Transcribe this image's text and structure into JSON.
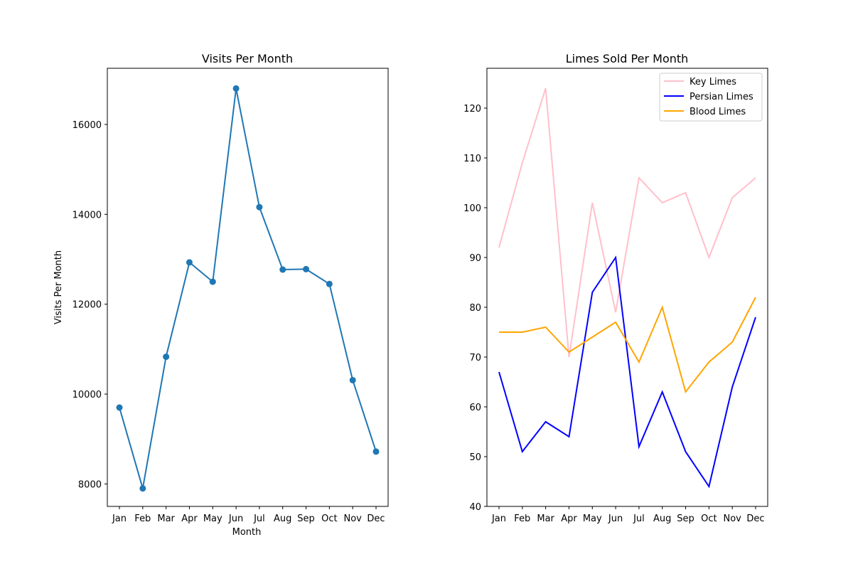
{
  "chart_data": [
    {
      "type": "line",
      "title": "Visits Per Month",
      "xlabel": "Month",
      "ylabel": "Visits Per Month",
      "categories": [
        "Jan",
        "Feb",
        "Mar",
        "Apr",
        "May",
        "Jun",
        "Jul",
        "Aug",
        "Sep",
        "Oct",
        "Nov",
        "Dec"
      ],
      "ylim": [
        7500,
        17250
      ],
      "yticks": [
        8000,
        10000,
        12000,
        14000,
        16000
      ],
      "grid": false,
      "markers": true,
      "series": [
        {
          "color": "#1f77b4",
          "values": [
            9700,
            7900,
            10830,
            12930,
            12500,
            16800,
            14160,
            12770,
            12780,
            12450,
            10310,
            8720
          ]
        }
      ]
    },
    {
      "type": "line",
      "title": "Limes Sold Per Month",
      "xlabel": "",
      "ylabel": "",
      "categories": [
        "Jan",
        "Feb",
        "Mar",
        "Apr",
        "May",
        "Jun",
        "Jul",
        "Aug",
        "Sep",
        "Oct",
        "Nov",
        "Dec"
      ],
      "ylim": [
        40,
        128
      ],
      "yticks": [
        40,
        50,
        60,
        70,
        80,
        90,
        100,
        110,
        120
      ],
      "grid": false,
      "legend": "top-right",
      "series": [
        {
          "name": "Key Limes",
          "color": "#ffc0cb",
          "values": [
            92,
            109,
            124,
            70,
            101,
            79,
            106,
            101,
            103,
            90,
            102,
            106
          ]
        },
        {
          "name": "Persian Limes",
          "color": "#0000ff",
          "values": [
            67,
            51,
            57,
            54,
            83,
            90,
            52,
            63,
            51,
            44,
            64,
            78
          ]
        },
        {
          "name": "Blood Limes",
          "color": "#ffa500",
          "values": [
            75,
            75,
            76,
            71,
            74,
            77,
            69,
            80,
            63,
            69,
            73,
            82
          ]
        }
      ]
    }
  ]
}
